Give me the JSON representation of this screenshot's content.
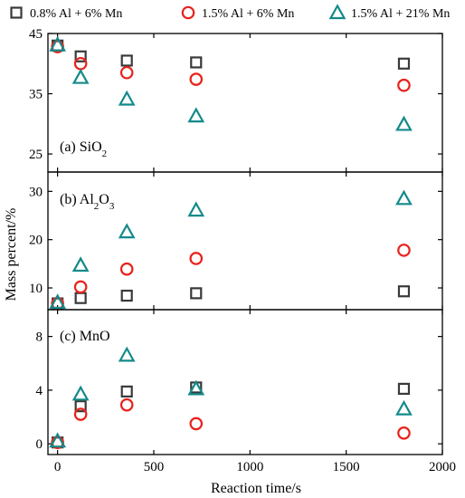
{
  "chart_data": {
    "type": "scatter",
    "xlabel": "Reaction time/s",
    "ylabel": "Mass percent/%",
    "xlim": [
      -50,
      2000
    ],
    "x_ticks": [
      0,
      500,
      1000,
      1500,
      2000
    ],
    "legend": {
      "placement": "top",
      "entries": [
        {
          "name": "0.8% Al + 6% Mn",
          "marker": "square",
          "color": "#3a3a3a"
        },
        {
          "name": "1.5% Al + 6% Mn",
          "marker": "circle",
          "color": "#e8221b"
        },
        {
          "name": "1.5% Al + 21% Mn",
          "marker": "triangle",
          "color": "#138a8a"
        }
      ]
    },
    "x": [
      0,
      120,
      360,
      720,
      1800
    ],
    "panels": [
      {
        "label": "(a) SiO",
        "label_sub": "2",
        "ylim": [
          22,
          45
        ],
        "y_ticks": [
          25,
          35,
          45
        ],
        "series": [
          {
            "name": "0.8% Al + 6% Mn",
            "values": [
              43.0,
              41.2,
              40.5,
              40.2,
              40.0
            ]
          },
          {
            "name": "1.5% Al + 6% Mn",
            "values": [
              42.8,
              40.0,
              38.5,
              37.4,
              36.4
            ]
          },
          {
            "name": "1.5% Al + 21% Mn",
            "values": [
              43.1,
              37.7,
              34.1,
              31.3,
              29.9
            ]
          }
        ]
      },
      {
        "label": "(b) Al",
        "label_sub": "2",
        "label_tail": "O",
        "label_sub2": "3",
        "ylim": [
          5.5,
          34
        ],
        "y_ticks": [
          10,
          20,
          30
        ],
        "series": [
          {
            "name": "0.8% Al + 6% Mn",
            "values": [
              6.8,
              7.9,
              8.4,
              8.9,
              9.3
            ]
          },
          {
            "name": "1.5% Al + 6% Mn",
            "values": [
              6.8,
              10.2,
              13.9,
              16.1,
              17.8
            ]
          },
          {
            "name": "1.5% Al + 21% Mn",
            "values": [
              7.0,
              14.7,
              21.6,
              26.1,
              28.5
            ]
          }
        ]
      },
      {
        "label": "(c) MnO",
        "ylim": [
          -0.8,
          10
        ],
        "y_ticks": [
          0,
          4,
          8
        ],
        "series": [
          {
            "name": "0.8% Al + 6% Mn",
            "values": [
              0.1,
              2.8,
              3.9,
              4.2,
              4.1
            ]
          },
          {
            "name": "1.5% Al + 6% Mn",
            "values": [
              0.1,
              2.2,
              2.9,
              1.5,
              0.8
            ]
          },
          {
            "name": "1.5% Al + 21% Mn",
            "values": [
              0.2,
              3.7,
              6.6,
              4.1,
              2.6
            ]
          }
        ]
      }
    ]
  }
}
